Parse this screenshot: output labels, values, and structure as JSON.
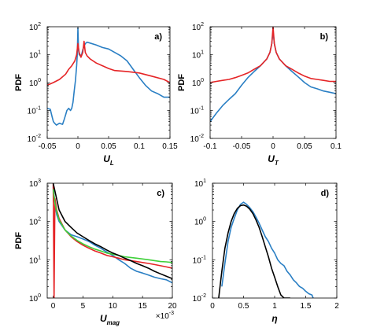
{
  "chart_data": [
    {
      "id": "a",
      "type": "line",
      "panel_label": "a)",
      "ylabel": "PDF",
      "xlabel": "U",
      "xlabel_sub": "L",
      "yscale": "log",
      "xlim": [
        -0.05,
        0.15
      ],
      "ylim": [
        0.01,
        100
      ],
      "xticks": [
        -0.05,
        0,
        0.05,
        0.1,
        0.15
      ],
      "xtick_labels": [
        "-0.05",
        "0",
        "0.05",
        "0.1",
        "0.15"
      ],
      "yticks": [
        0.01,
        0.1,
        1,
        10,
        100
      ],
      "ytick_labels": [
        [
          "10",
          "-2"
        ],
        [
          "10",
          "-1"
        ],
        [
          "10",
          "0"
        ],
        [
          "10",
          "1"
        ],
        [
          "10",
          "2"
        ]
      ],
      "series": [
        {
          "color": "#2a7fc4",
          "x": [
            -0.05,
            -0.045,
            -0.042,
            -0.04,
            -0.038,
            -0.035,
            -0.03,
            -0.025,
            -0.022,
            -0.02,
            -0.018,
            -0.015,
            -0.012,
            -0.01,
            -0.008,
            -0.006,
            -0.004,
            -0.002,
            -0.001,
            0,
            0.001,
            0.002,
            0.004,
            0.006,
            0.008,
            0.01,
            0.012,
            0.015,
            0.02,
            0.03,
            0.04,
            0.05,
            0.06,
            0.07,
            0.08,
            0.09,
            0.1,
            0.11,
            0.12,
            0.13,
            0.14,
            0.145,
            0.15
          ],
          "y": [
            0.12,
            0.11,
            0.06,
            0.04,
            0.035,
            0.03,
            0.035,
            0.032,
            0.05,
            0.07,
            0.1,
            0.12,
            0.1,
            0.12,
            0.2,
            0.5,
            1.2,
            4,
            10,
            90,
            15,
            10,
            9,
            10,
            15,
            20,
            25,
            28,
            26,
            22,
            18,
            16,
            12,
            9,
            6,
            3,
            1.5,
            0.8,
            0.5,
            0.4,
            0.3,
            0.3,
            0.3
          ]
        },
        {
          "color": "#e52426",
          "x": [
            -0.05,
            -0.04,
            -0.03,
            -0.02,
            -0.015,
            -0.01,
            -0.005,
            -0.002,
            0,
            0.002,
            0.005,
            0.008,
            0.01,
            0.012,
            0.015,
            0.02,
            0.03,
            0.04,
            0.05,
            0.06,
            0.08,
            0.1,
            0.12,
            0.14,
            0.15
          ],
          "y": [
            0.8,
            1,
            1.3,
            2,
            3,
            4,
            6,
            10,
            25,
            12,
            8,
            12,
            30,
            12,
            9,
            7,
            5,
            4,
            3.2,
            2.7,
            2.5,
            2.2,
            1.7,
            1.3,
            1
          ]
        }
      ]
    },
    {
      "id": "b",
      "type": "line",
      "panel_label": "b)",
      "ylabel": "PDF",
      "xlabel": "U",
      "xlabel_sub": "T",
      "yscale": "log",
      "xlim": [
        -0.1,
        0.1
      ],
      "ylim": [
        0.01,
        100
      ],
      "xticks": [
        -0.1,
        -0.05,
        0,
        0.05,
        0.1
      ],
      "xtick_labels": [
        "-0.1",
        "-0.05",
        "0",
        "0.05",
        "0.1"
      ],
      "yticks": [
        0.01,
        0.1,
        1,
        10,
        100
      ],
      "ytick_labels": [
        [
          "10",
          "-2"
        ],
        [
          "10",
          "-1"
        ],
        [
          "10",
          "0"
        ],
        [
          "10",
          "1"
        ],
        [
          "10",
          "2"
        ]
      ],
      "series": [
        {
          "color": "#2a7fc4",
          "x": [
            -0.1,
            -0.09,
            -0.08,
            -0.07,
            -0.06,
            -0.05,
            -0.04,
            -0.03,
            -0.02,
            -0.01,
            -0.005,
            -0.002,
            0,
            0.002,
            0.005,
            0.01,
            0.02,
            0.03,
            0.04,
            0.05,
            0.06,
            0.07,
            0.08,
            0.09,
            0.1
          ],
          "y": [
            0.04,
            0.08,
            0.15,
            0.25,
            0.4,
            0.8,
            1.5,
            2.5,
            4,
            7,
            12,
            25,
            70,
            25,
            12,
            7,
            4,
            2.5,
            1.6,
            1,
            0.7,
            0.6,
            0.5,
            0.45,
            0.4
          ]
        },
        {
          "color": "#e52426",
          "x": [
            -0.1,
            -0.09,
            -0.08,
            -0.07,
            -0.06,
            -0.05,
            -0.04,
            -0.03,
            -0.02,
            -0.01,
            -0.005,
            -0.002,
            0,
            0.002,
            0.005,
            0.01,
            0.02,
            0.03,
            0.04,
            0.05,
            0.06,
            0.07,
            0.08,
            0.09,
            0.1
          ],
          "y": [
            1,
            1.1,
            1.2,
            1.3,
            1.5,
            1.8,
            2.2,
            3,
            4,
            7,
            12,
            25,
            100,
            25,
            12,
            7,
            4,
            3,
            2.2,
            1.7,
            1.4,
            1.3,
            1.2,
            1.1,
            1.1
          ]
        }
      ]
    },
    {
      "id": "c",
      "type": "line",
      "panel_label": "c)",
      "ylabel": "PDF",
      "xlabel": "U",
      "xlabel_sub": "mag",
      "x_multiplier": [
        "×10",
        "-3"
      ],
      "yscale": "log",
      "xlim": [
        -1,
        20
      ],
      "ylim": [
        1,
        1000
      ],
      "xticks": [
        0,
        5,
        10,
        15,
        20
      ],
      "xtick_labels": [
        "0",
        "5",
        "10",
        "15",
        "20"
      ],
      "yticks": [
        1,
        10,
        100,
        1000
      ],
      "ytick_labels": [
        [
          "10",
          "0"
        ],
        [
          "10",
          "1"
        ],
        [
          "10",
          "2"
        ],
        [
          "10",
          "3"
        ]
      ],
      "series": [
        {
          "color": "#2a7fc4",
          "x": [
            0,
            0.3,
            0.6,
            1,
            2,
            3,
            4,
            5,
            6,
            7,
            8,
            9,
            10,
            11,
            12,
            13,
            14,
            15,
            16,
            17,
            18,
            19,
            20
          ],
          "y": [
            800,
            300,
            150,
            100,
            60,
            45,
            40,
            35,
            30,
            24,
            20,
            16,
            13,
            10,
            8,
            6,
            5,
            4.5,
            4,
            3.5,
            3.2,
            3,
            2.5
          ]
        },
        {
          "color": "#e52426",
          "x": [
            0,
            0.15,
            0.3,
            0.6,
            1,
            2,
            3,
            4,
            5,
            6,
            7,
            8,
            9,
            10,
            11,
            12,
            13,
            14,
            15,
            16,
            17,
            18,
            19,
            20
          ],
          "y": [
            1000,
            1,
            400,
            200,
            120,
            60,
            40,
            30,
            24,
            20,
            17,
            15,
            13,
            12,
            11,
            10,
            9.5,
            9,
            8.5,
            8,
            7.5,
            7,
            6.5,
            6
          ]
        },
        {
          "color": "#3fd03a",
          "x": [
            0,
            0.3,
            0.6,
            1,
            2,
            3,
            4,
            5,
            6,
            7,
            8,
            9,
            10,
            11,
            12,
            13,
            14,
            15,
            16,
            17,
            18,
            19,
            20
          ],
          "y": [
            700,
            300,
            180,
            110,
            60,
            42,
            32,
            26,
            22,
            19,
            17,
            15,
            14,
            13,
            12,
            11.5,
            11,
            10.5,
            10,
            9.5,
            9,
            8.8,
            8.5
          ]
        },
        {
          "color": "#000000",
          "x": [
            0,
            1,
            2,
            3,
            4,
            5,
            6,
            7,
            8,
            9,
            10,
            11,
            12,
            13,
            14,
            15,
            16,
            17,
            18,
            19,
            20
          ],
          "y": [
            1000,
            200,
            100,
            70,
            50,
            40,
            32,
            26,
            22,
            18,
            15,
            13,
            11,
            9.5,
            8,
            7,
            6,
            5,
            4.3,
            3.7,
            3.2
          ]
        }
      ]
    },
    {
      "id": "d",
      "type": "line",
      "panel_label": "d)",
      "ylabel": "",
      "xlabel": "η",
      "xlabel_sub": "",
      "yscale": "log",
      "xlim": [
        0,
        2
      ],
      "ylim": [
        0.01,
        10
      ],
      "xticks": [
        0,
        0.5,
        1,
        1.5,
        2
      ],
      "xtick_labels": [
        "0",
        "0.5",
        "1",
        "1.5",
        "2"
      ],
      "yticks": [
        0.01,
        0.1,
        1,
        10
      ],
      "ytick_labels": [
        [
          "10",
          "-2"
        ],
        [
          "10",
          "-1"
        ],
        [
          "10",
          "0"
        ],
        [
          "10",
          "1"
        ]
      ],
      "series": [
        {
          "color": "#2a7fc4",
          "x": [
            0.15,
            0.2,
            0.25,
            0.3,
            0.35,
            0.4,
            0.45,
            0.5,
            0.55,
            0.6,
            0.65,
            0.7,
            0.75,
            0.8,
            0.85,
            0.9,
            0.95,
            1,
            1.05,
            1.1,
            1.15,
            1.2,
            1.25,
            1.3,
            1.35,
            1.4,
            1.45,
            1.5,
            1.55,
            1.6,
            1.62
          ],
          "y": [
            0.02,
            0.08,
            0.3,
            0.7,
            1.2,
            2,
            2.8,
            3.2,
            2.8,
            2.3,
            1.8,
            1.3,
            0.9,
            0.6,
            0.4,
            0.3,
            0.2,
            0.15,
            0.1,
            0.08,
            0.07,
            0.05,
            0.04,
            0.03,
            0.025,
            0.02,
            0.018,
            0.015,
            0.013,
            0.012,
            0.01
          ]
        },
        {
          "color": "#000000",
          "x": [
            0.1,
            0.15,
            0.2,
            0.25,
            0.3,
            0.35,
            0.4,
            0.45,
            0.5,
            0.55,
            0.6,
            0.65,
            0.7,
            0.75,
            0.8,
            0.85,
            0.9,
            0.95,
            1,
            1.05,
            1.1,
            1.15,
            1.2,
            1.25
          ],
          "y": [
            0.01,
            0.05,
            0.2,
            0.5,
            1,
            1.6,
            2.2,
            2.6,
            2.7,
            2.5,
            2.1,
            1.6,
            1.1,
            0.7,
            0.4,
            0.22,
            0.12,
            0.06,
            0.035,
            0.02,
            0.012,
            0.01,
            0.01,
            0.01
          ]
        }
      ]
    }
  ]
}
